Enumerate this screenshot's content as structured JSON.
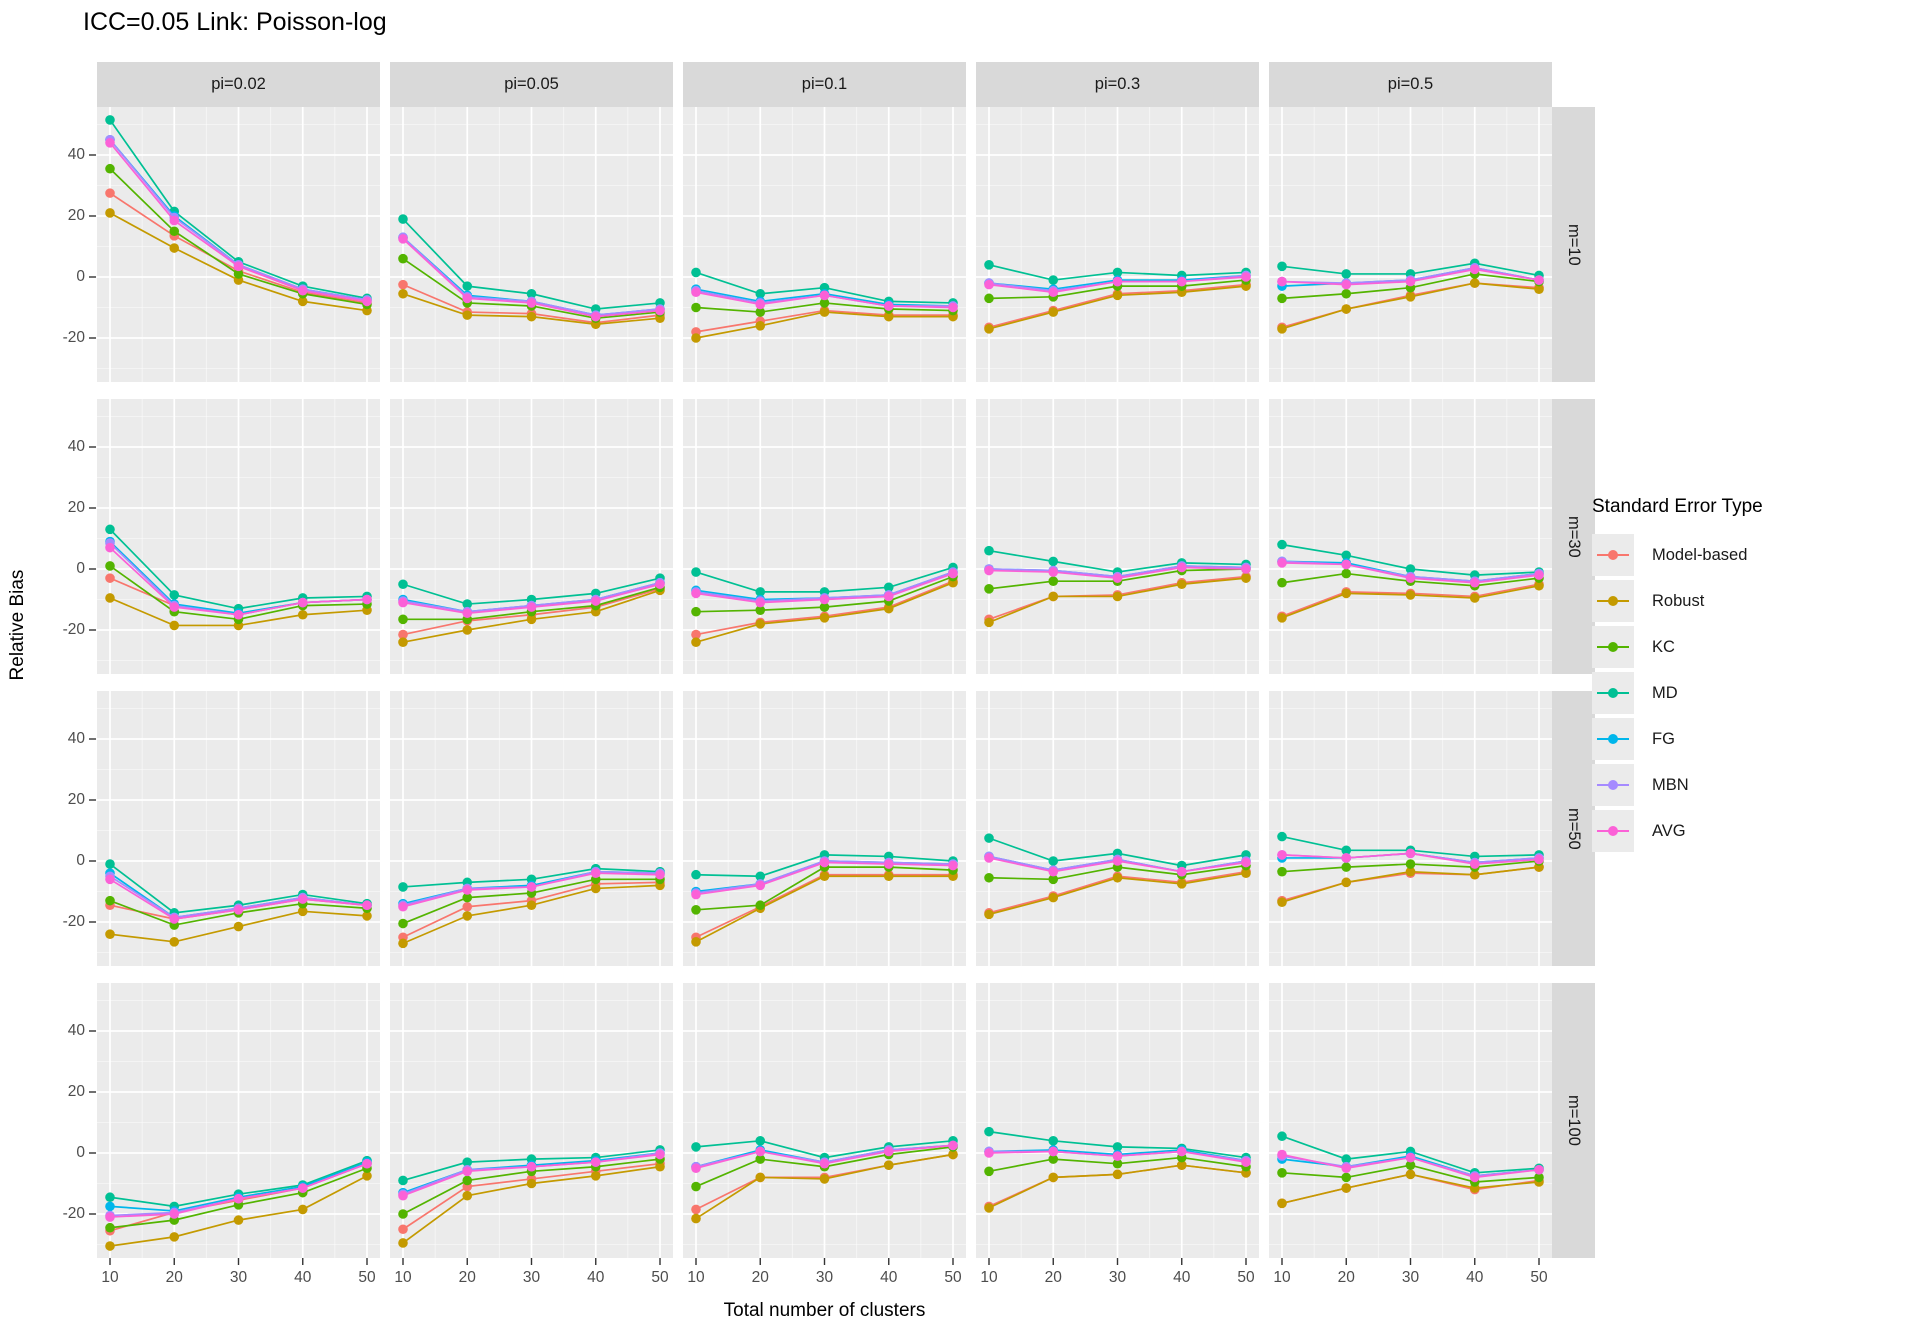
{
  "title": "ICC=0.05 Link: Poisson-log",
  "axes": {
    "x_title": "Total number of clusters",
    "y_title": "Relative Bias",
    "x_ticks": [
      10,
      20,
      30,
      40,
      50
    ],
    "y_ticks": [
      -20,
      0,
      20,
      40
    ],
    "y_minor": [
      -30,
      -10,
      10,
      30,
      50
    ]
  },
  "facets": {
    "col_labels": [
      "pi=0.02",
      "pi=0.05",
      "pi=0.1",
      "pi=0.3",
      "pi=0.5"
    ],
    "row_labels": [
      "m=10",
      "m=30",
      "m=50",
      "m=100"
    ]
  },
  "legend": {
    "title": "Standard Error Type",
    "entries": [
      {
        "name": "Model-based",
        "color": "#F8766D"
      },
      {
        "name": "Robust",
        "color": "#C49A00"
      },
      {
        "name": "KC",
        "color": "#53B400"
      },
      {
        "name": "MD",
        "color": "#00C094"
      },
      {
        "name": "FG",
        "color": "#00B6EB"
      },
      {
        "name": "MBN",
        "color": "#A58AFF"
      },
      {
        "name": "AVG",
        "color": "#FB61D7"
      }
    ]
  },
  "chart_data": {
    "type": "line",
    "x": [
      10,
      20,
      30,
      40,
      50
    ],
    "xlabel": "Total number of clusters",
    "ylabel": "Relative Bias",
    "grid": true,
    "legend_position": "right",
    "series_names": [
      "Model-based",
      "Robust",
      "KC",
      "MD",
      "FG",
      "MBN",
      "AVG"
    ],
    "panels": [
      {
        "row": "m=10",
        "col": "pi=0.02",
        "series": {
          "Model-based": [
            27.5,
            13.5,
            2,
            -5,
            -8.5
          ],
          "Robust": [
            21,
            9.5,
            -1,
            -8,
            -11
          ],
          "KC": [
            35.5,
            15,
            1,
            -5.5,
            -9
          ],
          "MD": [
            51.5,
            21.5,
            5,
            -3,
            -7
          ],
          "FG": [
            45,
            20,
            4,
            -4,
            -7.5
          ],
          "MBN": [
            45,
            19.5,
            4,
            -4,
            -7.5
          ],
          "AVG": [
            44,
            18.5,
            3.5,
            -4.5,
            -8
          ]
        }
      },
      {
        "row": "m=10",
        "col": "pi=0.05",
        "series": {
          "Model-based": [
            -2.5,
            -11.5,
            -12,
            -15,
            -12.5
          ],
          "Robust": [
            -5.5,
            -12.5,
            -13,
            -15.5,
            -13.5
          ],
          "KC": [
            6,
            -8.5,
            -9.5,
            -13.5,
            -11.5
          ],
          "MD": [
            19,
            -3,
            -5.5,
            -10.5,
            -8.5
          ],
          "FG": [
            13,
            -6,
            -8,
            -12.5,
            -10.5
          ],
          "MBN": [
            13,
            -6.5,
            -8,
            -12.5,
            -10.5
          ],
          "AVG": [
            12.5,
            -7,
            -8.5,
            -13,
            -11
          ]
        }
      },
      {
        "row": "m=10",
        "col": "pi=0.1",
        "series": {
          "Model-based": [
            -18,
            -14.5,
            -11,
            -12.5,
            -12.5
          ],
          "Robust": [
            -20,
            -16,
            -11.5,
            -13,
            -13
          ],
          "KC": [
            -10,
            -11.5,
            -8.5,
            -10.5,
            -11
          ],
          "MD": [
            1.5,
            -5.5,
            -3.5,
            -8,
            -8.5
          ],
          "FG": [
            -4,
            -8,
            -5.5,
            -9,
            -9.5
          ],
          "MBN": [
            -4.5,
            -8.5,
            -6,
            -9.5,
            -9.5
          ],
          "AVG": [
            -5,
            -9,
            -6,
            -9.5,
            -10
          ]
        }
      },
      {
        "row": "m=10",
        "col": "pi=0.3",
        "series": {
          "Model-based": [
            -16.5,
            -11,
            -5.5,
            -4.5,
            -2.5
          ],
          "Robust": [
            -17,
            -11.5,
            -6,
            -5,
            -3
          ],
          "KC": [
            -7,
            -6.5,
            -3,
            -3,
            -1
          ],
          "MD": [
            4,
            -1,
            1.5,
            0.5,
            1.5
          ],
          "FG": [
            -2,
            -4,
            -1,
            -1,
            0.5
          ],
          "MBN": [
            -2,
            -4.5,
            -1.5,
            -1.5,
            0.5
          ],
          "AVG": [
            -2.5,
            -5,
            -1.5,
            -1.5,
            0
          ]
        }
      },
      {
        "row": "m=10",
        "col": "pi=0.5",
        "series": {
          "Model-based": [
            -16.5,
            -10.5,
            -6,
            -2,
            -3.5
          ],
          "Robust": [
            -17,
            -10.5,
            -6.5,
            -2,
            -4
          ],
          "KC": [
            -7,
            -5.5,
            -3.5,
            1,
            -1.5
          ],
          "MD": [
            3.5,
            1,
            1,
            4.5,
            0.5
          ],
          "FG": [
            -3,
            -2,
            -1,
            3,
            -1
          ],
          "MBN": [
            -1.5,
            -2,
            -1,
            3,
            -1
          ],
          "AVG": [
            -1.5,
            -2.5,
            -1.5,
            2.5,
            -1
          ]
        }
      },
      {
        "row": "m=30",
        "col": "pi=0.02",
        "series": {
          "Model-based": [
            -3,
            -12,
            -15,
            -11,
            -10
          ],
          "Robust": [
            -9.5,
            -18.5,
            -18.5,
            -15,
            -13.5
          ],
          "KC": [
            1,
            -14,
            -16.5,
            -12,
            -11.5
          ],
          "MD": [
            13,
            -8.5,
            -13,
            -9.5,
            -9
          ],
          "FG": [
            9,
            -11.5,
            -14.5,
            -11,
            -10
          ],
          "MBN": [
            8.5,
            -12,
            -15,
            -11,
            -10
          ],
          "AVG": [
            7,
            -12.5,
            -15,
            -11,
            -10
          ]
        }
      },
      {
        "row": "m=30",
        "col": "pi=0.05",
        "series": {
          "Model-based": [
            -21.5,
            -17,
            -15,
            -12.5,
            -6.5
          ],
          "Robust": [
            -24,
            -20,
            -16.5,
            -14,
            -7
          ],
          "KC": [
            -16.5,
            -16.5,
            -14,
            -12,
            -6
          ],
          "MD": [
            -5,
            -11.5,
            -10,
            -8,
            -3
          ],
          "FG": [
            -10,
            -14,
            -12,
            -10,
            -4.5
          ],
          "MBN": [
            -10.5,
            -14,
            -12,
            -10,
            -4.5
          ],
          "AVG": [
            -11,
            -14.5,
            -12.5,
            -10.5,
            -5
          ]
        }
      },
      {
        "row": "m=30",
        "col": "pi=0.1",
        "series": {
          "Model-based": [
            -21.5,
            -17.5,
            -15.5,
            -12.5,
            -4
          ],
          "Robust": [
            -24,
            -18,
            -16,
            -13,
            -4.5
          ],
          "KC": [
            -14,
            -13.5,
            -12.5,
            -10.5,
            -2.5
          ],
          "MD": [
            -1,
            -7.5,
            -7.5,
            -6,
            0.5
          ],
          "FG": [
            -7,
            -10,
            -9.5,
            -8.5,
            -1
          ],
          "MBN": [
            -7.5,
            -10.5,
            -9.5,
            -8.5,
            -1
          ],
          "AVG": [
            -8,
            -11,
            -10,
            -9,
            -1.5
          ]
        }
      },
      {
        "row": "m=30",
        "col": "pi=0.3",
        "series": {
          "Model-based": [
            -16.5,
            -9,
            -8.5,
            -4.5,
            -2.5
          ],
          "Robust": [
            -17.5,
            -9,
            -9,
            -5,
            -3
          ],
          "KC": [
            -6.5,
            -4,
            -4,
            -0.5,
            0
          ],
          "MD": [
            6,
            2.5,
            -1,
            2,
            1.5
          ],
          "FG": [
            0,
            -0.5,
            -2.5,
            1,
            0.5
          ],
          "MBN": [
            0,
            -0.5,
            -2.5,
            1,
            0.5
          ],
          "AVG": [
            -0.5,
            -1,
            -3,
            0.5,
            0
          ]
        }
      },
      {
        "row": "m=30",
        "col": "pi=0.5",
        "series": {
          "Model-based": [
            -15.5,
            -7.5,
            -8,
            -9,
            -5
          ],
          "Robust": [
            -16,
            -8,
            -8.5,
            -9.5,
            -5.5
          ],
          "KC": [
            -4.5,
            -1.5,
            -4,
            -5.5,
            -3
          ],
          "MD": [
            8,
            4.5,
            0,
            -2,
            -1
          ],
          "FG": [
            2.5,
            2,
            -2.5,
            -4,
            -1.5
          ],
          "MBN": [
            2.5,
            1.5,
            -2.5,
            -4,
            -1.5
          ],
          "AVG": [
            2,
            1.5,
            -3,
            -4.5,
            -2
          ]
        }
      },
      {
        "row": "m=50",
        "col": "pi=0.02",
        "series": {
          "Model-based": [
            -14.5,
            -19,
            -16,
            -12.5,
            -14.5
          ],
          "Robust": [
            -24,
            -26.5,
            -21.5,
            -16.5,
            -18
          ],
          "KC": [
            -13,
            -21,
            -17,
            -14,
            -15.5
          ],
          "MD": [
            -1,
            -17,
            -14.5,
            -11,
            -14
          ],
          "FG": [
            -4,
            -18.5,
            -15.5,
            -12,
            -14.5
          ],
          "MBN": [
            -5,
            -18.5,
            -15.5,
            -12,
            -14.5
          ],
          "AVG": [
            -6,
            -19,
            -16,
            -12.5,
            -14.5
          ]
        }
      },
      {
        "row": "m=50",
        "col": "pi=0.05",
        "series": {
          "Model-based": [
            -25,
            -15,
            -13,
            -7.5,
            -7
          ],
          "Robust": [
            -27,
            -18,
            -14.5,
            -9,
            -8
          ],
          "KC": [
            -20.5,
            -12,
            -10.5,
            -6,
            -6
          ],
          "MD": [
            -8.5,
            -7,
            -6,
            -2.5,
            -3.5
          ],
          "FG": [
            -14,
            -9,
            -8,
            -3.5,
            -4
          ],
          "MBN": [
            -14.5,
            -9,
            -8.5,
            -3.5,
            -4
          ],
          "AVG": [
            -15,
            -9.5,
            -8.5,
            -4,
            -4.5
          ]
        }
      },
      {
        "row": "m=50",
        "col": "pi=0.1",
        "series": {
          "Model-based": [
            -25,
            -15,
            -4.5,
            -4.5,
            -4.5
          ],
          "Robust": [
            -26.5,
            -15.5,
            -5,
            -5,
            -5
          ],
          "KC": [
            -16,
            -14.5,
            -2,
            -2,
            -3
          ],
          "MD": [
            -4.5,
            -5,
            2,
            1.5,
            0
          ],
          "FG": [
            -10,
            -7.5,
            0,
            -0.5,
            -1
          ],
          "MBN": [
            -10.5,
            -7.5,
            0,
            -0.5,
            -1
          ],
          "AVG": [
            -11,
            -8,
            -0.5,
            -1,
            -1.5
          ]
        }
      },
      {
        "row": "m=50",
        "col": "pi=0.3",
        "series": {
          "Model-based": [
            -17,
            -11.5,
            -5,
            -7,
            -3.5
          ],
          "Robust": [
            -17.5,
            -12,
            -5.5,
            -7.5,
            -4
          ],
          "KC": [
            -5.5,
            -6,
            -2,
            -4.5,
            -1.5
          ],
          "MD": [
            7.5,
            0,
            2.5,
            -1.5,
            2
          ],
          "FG": [
            1.5,
            -3,
            0.5,
            -3.5,
            0
          ],
          "MBN": [
            1.5,
            -3,
            0.5,
            -3.5,
            0
          ],
          "AVG": [
            1,
            -3.5,
            0,
            -3.5,
            -0.5
          ]
        }
      },
      {
        "row": "m=50",
        "col": "pi=0.5",
        "series": {
          "Model-based": [
            -13,
            -7,
            -4,
            -4.5,
            -2
          ],
          "Robust": [
            -13.5,
            -7,
            -3.5,
            -4.5,
            -2
          ],
          "KC": [
            -3.5,
            -2,
            -1,
            -2,
            0
          ],
          "MD": [
            8,
            3.5,
            3.5,
            1.5,
            2
          ],
          "FG": [
            1,
            1,
            2.5,
            -0.5,
            1
          ],
          "MBN": [
            2,
            1,
            2.5,
            -0.5,
            1
          ],
          "AVG": [
            2,
            1,
            2.5,
            -1,
            0.5
          ]
        }
      },
      {
        "row": "m=100",
        "col": "pi=0.02",
        "series": {
          "Model-based": [
            -25.5,
            -19.5,
            -15.5,
            -11.5,
            -3.5
          ],
          "Robust": [
            -30.5,
            -27.5,
            -22,
            -18.5,
            -7.5
          ],
          "KC": [
            -24.5,
            -22,
            -17,
            -13,
            -5
          ],
          "MD": [
            -14.5,
            -17.5,
            -13.5,
            -10.5,
            -2.5
          ],
          "FG": [
            -17.5,
            -19,
            -14.5,
            -11,
            -3
          ],
          "MBN": [
            -20.5,
            -19.5,
            -15,
            -11.5,
            -3.5
          ],
          "AVG": [
            -21,
            -20,
            -15,
            -11.5,
            -3.5
          ]
        }
      },
      {
        "row": "m=100",
        "col": "pi=0.05",
        "series": {
          "Model-based": [
            -25,
            -11,
            -8.5,
            -6,
            -3.5
          ],
          "Robust": [
            -29.5,
            -14,
            -10,
            -7.5,
            -4.5
          ],
          "KC": [
            -20,
            -9,
            -6,
            -4.5,
            -2
          ],
          "MD": [
            -9,
            -3,
            -2,
            -1.5,
            1
          ],
          "FG": [
            -13,
            -5.5,
            -4,
            -2.5,
            0
          ],
          "MBN": [
            -13.5,
            -5.5,
            -4.5,
            -3,
            0
          ],
          "AVG": [
            -14,
            -6,
            -4.5,
            -3,
            -0.5
          ]
        }
      },
      {
        "row": "m=100",
        "col": "pi=0.1",
        "series": {
          "Model-based": [
            -18.5,
            -8,
            -8,
            -4,
            -0.5
          ],
          "Robust": [
            -21.5,
            -8,
            -8.5,
            -4,
            -0.5
          ],
          "KC": [
            -11,
            -2,
            -4.5,
            -0.5,
            2
          ],
          "MD": [
            2,
            4,
            -1.5,
            2,
            4
          ],
          "FG": [
            -4.5,
            1,
            -3,
            1,
            2.5
          ],
          "MBN": [
            -4.5,
            0.5,
            -3,
            1,
            2.5
          ],
          "AVG": [
            -5,
            0.5,
            -3.5,
            0.5,
            2.5
          ]
        }
      },
      {
        "row": "m=100",
        "col": "pi=0.3",
        "series": {
          "Model-based": [
            -17.5,
            -8,
            -7,
            -4,
            -6.5
          ],
          "Robust": [
            -18,
            -8,
            -7,
            -4,
            -6.5
          ],
          "KC": [
            -6,
            -2,
            -3.5,
            -1.5,
            -4.5
          ],
          "MD": [
            7,
            4,
            2,
            1.5,
            -1.5
          ],
          "FG": [
            0.5,
            1,
            -0.5,
            1,
            -2.5
          ],
          "MBN": [
            0.5,
            0.5,
            -1,
            0.5,
            -2.5
          ],
          "AVG": [
            0,
            0.5,
            -1,
            0.5,
            -3
          ]
        }
      },
      {
        "row": "m=100",
        "col": "pi=0.5",
        "series": {
          "Model-based": [
            -16.5,
            -11.5,
            -7,
            -12,
            -9
          ],
          "Robust": [
            -16.5,
            -11.5,
            -7,
            -11.5,
            -9.5
          ],
          "KC": [
            -6.5,
            -8,
            -4,
            -9.5,
            -8
          ],
          "MD": [
            5.5,
            -2,
            0.5,
            -6.5,
            -5
          ],
          "FG": [
            -2,
            -4.5,
            -1,
            -7.5,
            -5.5
          ],
          "MBN": [
            -1,
            -4.5,
            -1.5,
            -7.5,
            -5.5
          ],
          "AVG": [
            -0.5,
            -5,
            -1.5,
            -8,
            -5.5
          ]
        }
      }
    ]
  }
}
